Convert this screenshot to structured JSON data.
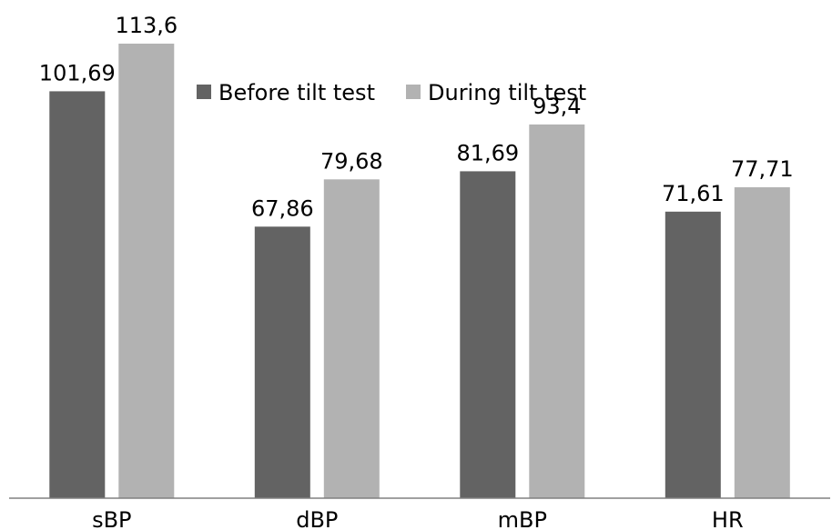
{
  "chart_data": {
    "type": "bar",
    "categories": [
      "sBP",
      "dBP",
      "mBP",
      "HR"
    ],
    "series": [
      {
        "name": "Before tilt test",
        "values": [
          101.69,
          67.86,
          81.69,
          71.61
        ],
        "labels": [
          "101,69",
          "67,86",
          "81,69",
          "71,61"
        ],
        "color": "#636363"
      },
      {
        "name": "During tilt test",
        "values": [
          113.6,
          79.68,
          93.4,
          77.71
        ],
        "labels": [
          "113,6",
          "79,68",
          "93,4",
          "77,71"
        ],
        "color": "#b2b2b2"
      }
    ],
    "ylim": [
      0,
      124.5
    ],
    "grid": false,
    "legend": "top-center",
    "axis_color": "#808080"
  }
}
